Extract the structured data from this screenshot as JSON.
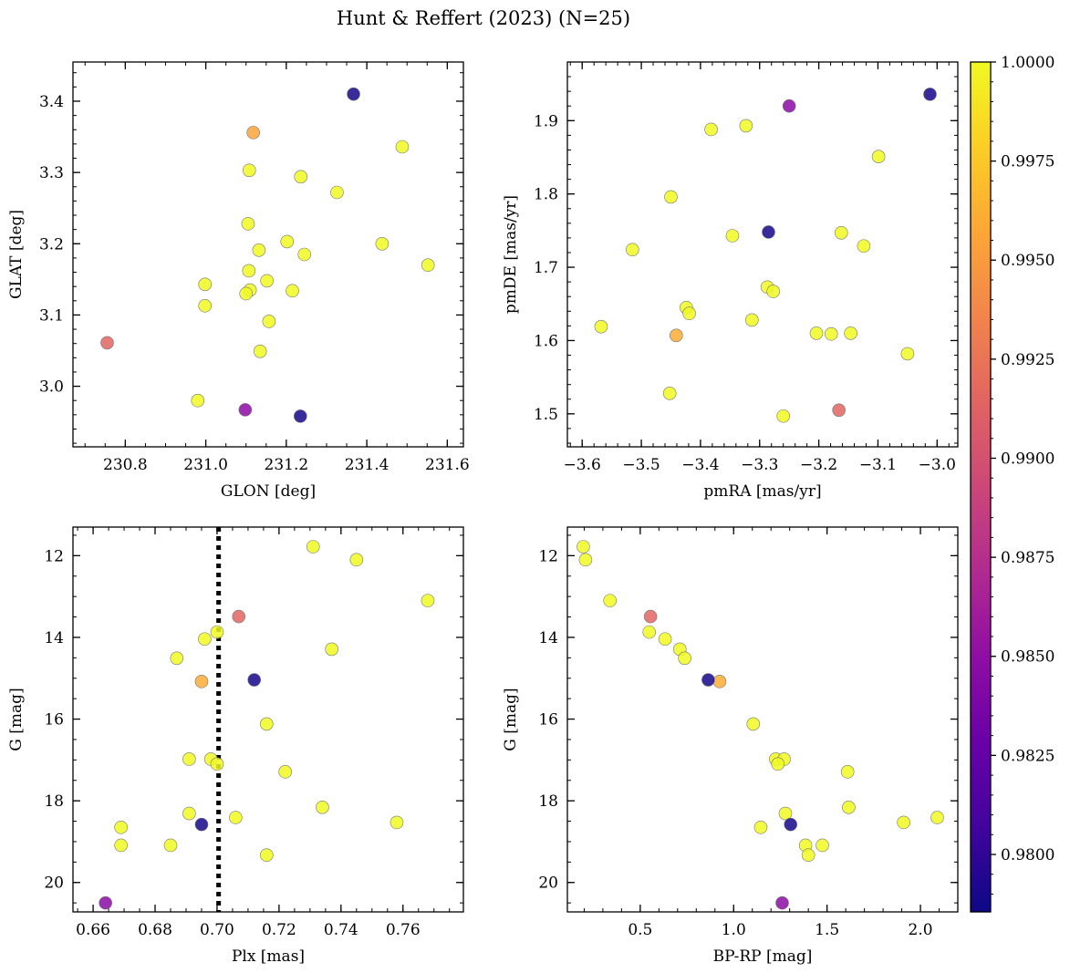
{
  "title": "Hunt & Reffert (2023) (N=25)",
  "colors": {
    "point_edge": "#777777",
    "reference_line": "#000000",
    "colormap": [
      "#0d0887",
      "#41049d",
      "#6a00a8",
      "#8f0da4",
      "#b12a90",
      "#cc4778",
      "#e16462",
      "#f2844b",
      "#fca636",
      "#fcce25",
      "#f0f921"
    ]
  },
  "colorbar": {
    "min": 0.97855,
    "max": 1.0,
    "ticks": [
      0.98,
      0.9825,
      0.985,
      0.9875,
      0.99,
      0.9925,
      0.995,
      0.9975,
      1.0
    ],
    "tick_labels": [
      "0.9800",
      "0.9825",
      "0.9850",
      "0.9875",
      "0.9900",
      "0.9925",
      "0.9950",
      "0.9975",
      "1.0000"
    ]
  },
  "chart_data": [
    {
      "type": "scatter",
      "id": "glon-glat",
      "xlabel": "GLON [deg]",
      "ylabel": "GLAT [deg]",
      "xlim": [
        230.67,
        231.64
      ],
      "ylim": [
        2.915,
        3.455
      ],
      "x_inverted": false,
      "y_inverted": false,
      "xticks": [
        230.8,
        231.0,
        231.2,
        231.4,
        231.6
      ],
      "xtick_labels": [
        "230.8",
        "231.0",
        "231.2",
        "231.4",
        "231.6"
      ],
      "xminor": 0.05,
      "yticks": [
        3.0,
        3.1,
        3.2,
        3.3,
        3.4
      ],
      "ytick_labels": [
        "3.0",
        "3.1",
        "3.2",
        "3.3",
        "3.4"
      ],
      "yminor": 0.02,
      "points": [
        {
          "x": 230.755,
          "y": 3.061,
          "c": 0.9915
        },
        {
          "x": 231.118,
          "y": 3.356,
          "c": 0.9955
        },
        {
          "x": 231.367,
          "y": 3.41,
          "c": 0.9789
        },
        {
          "x": 231.098,
          "y": 2.967,
          "c": 0.9848
        },
        {
          "x": 231.235,
          "y": 2.958,
          "c": 0.9789
        },
        {
          "x": 231.488,
          "y": 3.336,
          "c": 1.0
        },
        {
          "x": 231.108,
          "y": 3.303,
          "c": 1.0
        },
        {
          "x": 231.236,
          "y": 3.294,
          "c": 1.0
        },
        {
          "x": 231.326,
          "y": 3.272,
          "c": 1.0
        },
        {
          "x": 231.105,
          "y": 3.228,
          "c": 1.0
        },
        {
          "x": 231.202,
          "y": 3.203,
          "c": 1.0
        },
        {
          "x": 231.438,
          "y": 3.2,
          "c": 1.0
        },
        {
          "x": 231.132,
          "y": 3.191,
          "c": 1.0
        },
        {
          "x": 231.245,
          "y": 3.185,
          "c": 1.0
        },
        {
          "x": 231.552,
          "y": 3.17,
          "c": 1.0
        },
        {
          "x": 231.107,
          "y": 3.162,
          "c": 1.0
        },
        {
          "x": 231.152,
          "y": 3.148,
          "c": 1.0
        },
        {
          "x": 230.998,
          "y": 3.143,
          "c": 1.0
        },
        {
          "x": 231.11,
          "y": 3.135,
          "c": 1.0
        },
        {
          "x": 231.215,
          "y": 3.134,
          "c": 1.0
        },
        {
          "x": 231.1,
          "y": 3.13,
          "c": 1.0
        },
        {
          "x": 230.998,
          "y": 3.113,
          "c": 1.0
        },
        {
          "x": 231.157,
          "y": 3.091,
          "c": 1.0
        },
        {
          "x": 231.135,
          "y": 3.049,
          "c": 1.0
        },
        {
          "x": 230.98,
          "y": 2.98,
          "c": 1.0
        }
      ]
    },
    {
      "type": "scatter",
      "id": "pmra-pmde",
      "xlabel": "pmRA [mas/yr]",
      "ylabel": "pmDE [mas/yr]",
      "xlim": [
        -3.625,
        -2.965
      ],
      "ylim": [
        1.455,
        1.98
      ],
      "x_inverted": false,
      "y_inverted": false,
      "xticks": [
        -3.6,
        -3.5,
        -3.4,
        -3.3,
        -3.2,
        -3.1,
        -3.0
      ],
      "xtick_labels": [
        "−3.6",
        "−3.5",
        "−3.4",
        "−3.3",
        "−3.2",
        "−3.1",
        "−3.0"
      ],
      "xminor": 0.02,
      "yticks": [
        1.5,
        1.6,
        1.7,
        1.8,
        1.9
      ],
      "ytick_labels": [
        "1.5",
        "1.6",
        "1.7",
        "1.8",
        "1.9"
      ],
      "yminor": 0.02,
      "points": [
        {
          "x": -3.012,
          "y": 1.936,
          "c": 0.9789
        },
        {
          "x": -3.25,
          "y": 1.92,
          "c": 0.9848
        },
        {
          "x": -3.323,
          "y": 1.893,
          "c": 1.0
        },
        {
          "x": -3.382,
          "y": 1.888,
          "c": 1.0
        },
        {
          "x": -3.099,
          "y": 1.851,
          "c": 1.0
        },
        {
          "x": -3.45,
          "y": 1.796,
          "c": 1.0
        },
        {
          "x": -3.285,
          "y": 1.748,
          "c": 0.9789
        },
        {
          "x": -3.162,
          "y": 1.747,
          "c": 1.0
        },
        {
          "x": -3.346,
          "y": 1.743,
          "c": 1.0
        },
        {
          "x": -3.124,
          "y": 1.729,
          "c": 1.0
        },
        {
          "x": -3.515,
          "y": 1.724,
          "c": 1.0
        },
        {
          "x": -3.287,
          "y": 1.673,
          "c": 1.0
        },
        {
          "x": -3.277,
          "y": 1.667,
          "c": 1.0
        },
        {
          "x": -3.424,
          "y": 1.645,
          "c": 1.0
        },
        {
          "x": -3.419,
          "y": 1.637,
          "c": 1.0
        },
        {
          "x": -3.313,
          "y": 1.628,
          "c": 1.0
        },
        {
          "x": -3.568,
          "y": 1.619,
          "c": 1.0
        },
        {
          "x": -3.204,
          "y": 1.61,
          "c": 1.0
        },
        {
          "x": -3.179,
          "y": 1.609,
          "c": 1.0
        },
        {
          "x": -3.146,
          "y": 1.61,
          "c": 1.0
        },
        {
          "x": -3.441,
          "y": 1.607,
          "c": 0.996
        },
        {
          "x": -3.05,
          "y": 1.582,
          "c": 1.0
        },
        {
          "x": -3.452,
          "y": 1.528,
          "c": 1.0
        },
        {
          "x": -3.166,
          "y": 1.505,
          "c": 0.9915
        },
        {
          "x": -3.26,
          "y": 1.497,
          "c": 1.0
        }
      ]
    },
    {
      "type": "scatter",
      "id": "plx-g",
      "xlabel": "Plx [mas]",
      "ylabel": "G [mag]",
      "xlim": [
        0.6535,
        0.7795
      ],
      "ylim": [
        11.3,
        20.72
      ],
      "x_inverted": false,
      "y_inverted": true,
      "xticks": [
        0.66,
        0.68,
        0.7,
        0.72,
        0.74,
        0.76
      ],
      "xtick_labels": [
        "0.66",
        "0.68",
        "0.70",
        "0.72",
        "0.74",
        "0.76"
      ],
      "xminor": 0.005,
      "yticks": [
        12,
        14,
        16,
        18,
        20
      ],
      "ytick_labels": [
        "12",
        "14",
        "16",
        "18",
        "20"
      ],
      "yminor": 0.5,
      "reference_line": {
        "axis": "x",
        "value": 0.7005,
        "style": "dotted"
      },
      "points": [
        {
          "x": 0.731,
          "y": 11.78,
          "c": 1.0
        },
        {
          "x": 0.745,
          "y": 12.1,
          "c": 1.0
        },
        {
          "x": 0.768,
          "y": 13.1,
          "c": 1.0
        },
        {
          "x": 0.707,
          "y": 13.49,
          "c": 0.9915
        },
        {
          "x": 0.7,
          "y": 13.87,
          "c": 1.0
        },
        {
          "x": 0.696,
          "y": 14.04,
          "c": 1.0
        },
        {
          "x": 0.737,
          "y": 14.29,
          "c": 1.0
        },
        {
          "x": 0.687,
          "y": 14.51,
          "c": 1.0
        },
        {
          "x": 0.712,
          "y": 15.04,
          "c": 0.9789
        },
        {
          "x": 0.695,
          "y": 15.08,
          "c": 0.996
        },
        {
          "x": 0.716,
          "y": 16.12,
          "c": 1.0
        },
        {
          "x": 0.691,
          "y": 16.98,
          "c": 1.0
        },
        {
          "x": 0.698,
          "y": 16.98,
          "c": 1.0
        },
        {
          "x": 0.7,
          "y": 17.1,
          "c": 1.0
        },
        {
          "x": 0.722,
          "y": 17.29,
          "c": 1.0
        },
        {
          "x": 0.734,
          "y": 18.16,
          "c": 1.0
        },
        {
          "x": 0.691,
          "y": 18.31,
          "c": 1.0
        },
        {
          "x": 0.706,
          "y": 18.41,
          "c": 1.0
        },
        {
          "x": 0.758,
          "y": 18.53,
          "c": 1.0
        },
        {
          "x": 0.695,
          "y": 18.58,
          "c": 0.9789
        },
        {
          "x": 0.669,
          "y": 18.65,
          "c": 1.0
        },
        {
          "x": 0.669,
          "y": 19.09,
          "c": 1.0
        },
        {
          "x": 0.685,
          "y": 19.09,
          "c": 1.0
        },
        {
          "x": 0.716,
          "y": 19.33,
          "c": 1.0
        },
        {
          "x": 0.664,
          "y": 20.5,
          "c": 0.9848
        }
      ]
    },
    {
      "type": "scatter",
      "id": "color-g",
      "xlabel": "BP-RP [mag]",
      "ylabel": "G [mag]",
      "xlim": [
        0.11,
        2.2
      ],
      "ylim": [
        11.3,
        20.72
      ],
      "x_inverted": false,
      "y_inverted": true,
      "xticks": [
        0.5,
        1.0,
        1.5,
        2.0
      ],
      "xtick_labels": [
        "0.5",
        "1.0",
        "1.5",
        "2.0"
      ],
      "xminor": 0.1,
      "yticks": [
        12,
        14,
        16,
        18,
        20
      ],
      "ytick_labels": [
        "12",
        "14",
        "16",
        "18",
        "20"
      ],
      "yminor": 0.5,
      "points": [
        {
          "x": 0.195,
          "y": 11.78,
          "c": 1.0
        },
        {
          "x": 0.207,
          "y": 12.1,
          "c": 1.0
        },
        {
          "x": 0.338,
          "y": 13.1,
          "c": 1.0
        },
        {
          "x": 0.555,
          "y": 13.49,
          "c": 0.9915
        },
        {
          "x": 0.548,
          "y": 13.87,
          "c": 1.0
        },
        {
          "x": 0.633,
          "y": 14.04,
          "c": 1.0
        },
        {
          "x": 0.712,
          "y": 14.29,
          "c": 1.0
        },
        {
          "x": 0.738,
          "y": 14.51,
          "c": 1.0
        },
        {
          "x": 0.864,
          "y": 15.04,
          "c": 0.9789
        },
        {
          "x": 0.925,
          "y": 15.08,
          "c": 0.996
        },
        {
          "x": 1.105,
          "y": 16.12,
          "c": 1.0
        },
        {
          "x": 1.225,
          "y": 16.98,
          "c": 1.0
        },
        {
          "x": 1.27,
          "y": 16.98,
          "c": 1.0
        },
        {
          "x": 1.237,
          "y": 17.1,
          "c": 1.0
        },
        {
          "x": 1.61,
          "y": 17.29,
          "c": 1.0
        },
        {
          "x": 1.616,
          "y": 18.16,
          "c": 1.0
        },
        {
          "x": 1.277,
          "y": 18.31,
          "c": 1.0
        },
        {
          "x": 2.09,
          "y": 18.41,
          "c": 1.0
        },
        {
          "x": 1.91,
          "y": 18.53,
          "c": 1.0
        },
        {
          "x": 1.305,
          "y": 18.58,
          "c": 0.9789
        },
        {
          "x": 1.145,
          "y": 18.65,
          "c": 1.0
        },
        {
          "x": 1.385,
          "y": 19.09,
          "c": 1.0
        },
        {
          "x": 1.475,
          "y": 19.09,
          "c": 1.0
        },
        {
          "x": 1.4,
          "y": 19.33,
          "c": 1.0
        },
        {
          "x": 1.26,
          "y": 20.5,
          "c": 0.9848
        }
      ]
    }
  ]
}
